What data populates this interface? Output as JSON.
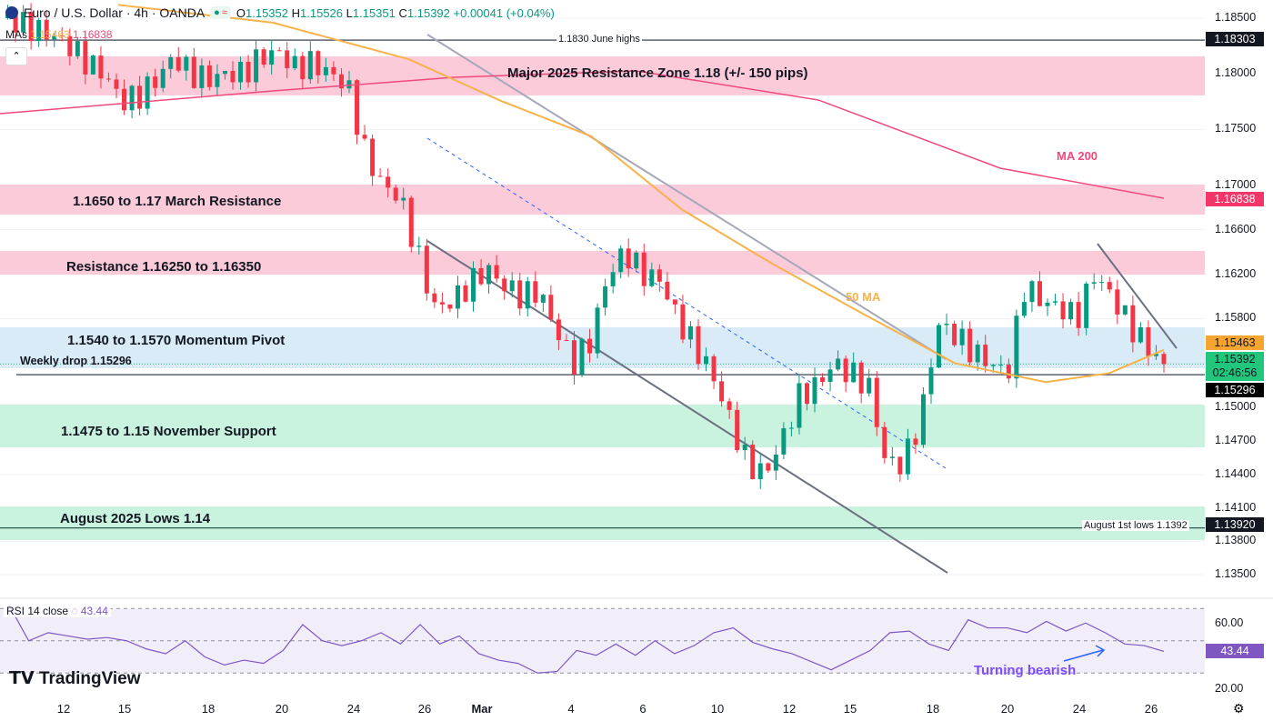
{
  "header": {
    "symbol": "Euro / U.S. Dollar · 4h · OANDA",
    "open_label": "O",
    "open": "1.15352",
    "high_label": "H",
    "high": "1.15526",
    "low_label": "L",
    "low": "1.15351",
    "close_label": "C",
    "close": "1.15392",
    "change": "+0.00041 (+0.04%)",
    "mas_label": "MAs",
    "ma50_value": "1.15463",
    "ma200_value": "1.16838",
    "collapse_icon": "chevron-up"
  },
  "colors": {
    "up": "#089981",
    "down": "#f23645",
    "ma50": "#f7b24a",
    "ma200": "#f0497c",
    "resistance_zone": "#fcc5d6",
    "pivot_zone": "#d4e9f5",
    "support_zone": "#c3f1dc",
    "rsi": "#7e57c2"
  },
  "zones": [
    {
      "label": "Major 2025 Resistance Zone 1.18 (+/- 150 pips)",
      "from": 1.17806,
      "to": 1.18157,
      "kind": "resistance"
    },
    {
      "label": "1.1650 to 1.17 March Resistance",
      "from": 1.16735,
      "to": 1.17005,
      "kind": "resistance"
    },
    {
      "label": "Resistance 1.16250 to 1.16350",
      "from": 1.16196,
      "to": 1.16409,
      "kind": "resistance"
    },
    {
      "label": "1.1540 to 1.1570 Momentum Pivot",
      "from": 1.15355,
      "to": 1.15722,
      "kind": "pivot"
    },
    {
      "label": "1.1475 to 1.15 November Support",
      "from": 1.14644,
      "to": 1.15028,
      "kind": "support"
    },
    {
      "label": "August 2025 Lows 1.14",
      "from": 1.13811,
      "to": 1.14113,
      "kind": "support"
    }
  ],
  "annotations": {
    "june_highs": "1.1830 June highs",
    "aug_lows": "August 1st lows 1.1392",
    "weekly_drop": "Weekly drop 1.15296",
    "ma200": "MA 200",
    "ma50": "50 MA",
    "turning": "Turning bearish"
  },
  "price_tags": {
    "june_high": "1.18303",
    "ma200": "1.16838",
    "ma50": "1.15463",
    "last": "1.15392",
    "countdown": "02:46:56",
    "weekly_drop": "1.15296",
    "aug_low": "1.13920"
  },
  "chart_data": {
    "type": "candlestick",
    "title": "Euro / U.S. Dollar · 4h · OANDA",
    "ylim": [
      1.135,
      1.185
    ],
    "y_ticks": [
      "1.18500",
      "1.18000",
      "1.17500",
      "1.17000",
      "1.16600",
      "1.16200",
      "1.15800",
      "1.15000",
      "1.14700",
      "1.14400",
      "1.14100",
      "1.13800",
      "1.13500"
    ],
    "x_ticks": [
      "12",
      "15",
      "18",
      "20",
      "24",
      "26",
      "Mar",
      "4",
      "6",
      "10",
      "12",
      "15",
      "18",
      "20",
      "24",
      "26"
    ],
    "close_path": [
      1.185,
      1.1846,
      1.184,
      1.1835,
      1.1825,
      1.181,
      1.18,
      1.1775,
      1.178,
      1.1795,
      1.1815,
      1.18,
      1.1795,
      1.18,
      1.18,
      1.1815,
      1.182,
      1.1805,
      1.181,
      1.18,
      1.179,
      1.173,
      1.17,
      1.169,
      1.164,
      1.159,
      1.1595,
      1.161,
      1.1625,
      1.161,
      1.16,
      1.1605,
      1.157,
      1.154,
      1.156,
      1.162,
      1.164,
      1.162,
      1.1615,
      1.158,
      1.1555,
      1.153,
      1.149,
      1.145,
      1.144,
      1.147,
      1.151,
      1.152,
      1.154,
      1.153,
      1.152,
      1.145,
      1.145,
      1.149,
      1.1575,
      1.1565,
      1.155,
      1.154,
      1.153,
      1.161,
      1.1595,
      1.159,
      1.158,
      1.162,
      1.16,
      1.1575,
      1.1555,
      1.15392
    ],
    "ma200": [
      1.17642,
      1.17846,
      1.17969,
      1.18026,
      1.17765,
      1.17152,
      1.16882
    ],
    "ma50": [
      1.1862,
      1.1846,
      1.1813,
      1.1776,
      1.1744,
      1.1678,
      1.1629,
      1.1584,
      1.154,
      1.1523,
      1.1531,
      1.1552
    ],
    "rsi": {
      "label": "RSI 14 close",
      "value": "43.44",
      "levels": [
        70,
        50,
        30
      ],
      "ticks": [
        "60.00",
        "20.00"
      ],
      "ylim": [
        20,
        70
      ],
      "values": [
        72,
        50,
        55,
        53,
        51,
        52,
        50,
        45,
        42,
        50,
        40,
        35,
        38,
        36,
        44,
        60,
        50,
        47,
        50,
        55,
        48,
        60,
        48,
        53,
        42,
        38,
        36,
        30,
        31,
        44,
        41,
        48,
        41,
        50,
        42,
        47,
        55,
        58,
        49,
        45,
        42,
        37,
        32,
        38,
        44,
        55,
        56,
        48,
        44,
        63,
        58,
        58,
        55,
        62,
        56,
        61,
        55,
        48,
        47,
        43.44
      ]
    }
  },
  "branding": "TradingView"
}
